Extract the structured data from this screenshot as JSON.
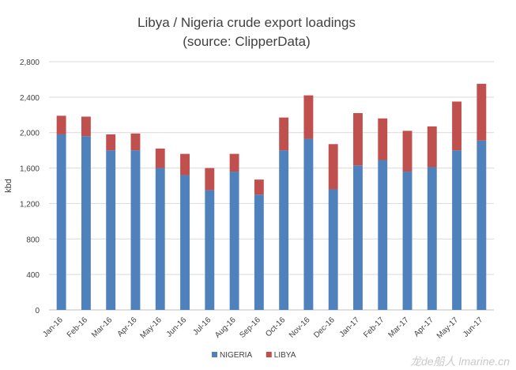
{
  "chart_data": {
    "type": "bar",
    "stacked": true,
    "title": "Libya / Nigeria crude export loadings",
    "subtitle": "(source: ClipperData)",
    "xlabel": "",
    "ylabel": "kbd",
    "ylim": [
      0,
      2800
    ],
    "yticks": [
      "0",
      "400",
      "800",
      "1,200",
      "1,600",
      "2,000",
      "2,400",
      "2,800"
    ],
    "grid": true,
    "legend_position": "bottom",
    "categories": [
      "Jan-16",
      "Feb-16",
      "Mar-16",
      "Apr-16",
      "May-16",
      "Jun-16",
      "Jul-16",
      "Aug-16",
      "Sep-16",
      "Oct-16",
      "Nov-16",
      "Dec-16",
      "Jan-17",
      "Feb-17",
      "Mar-17",
      "Apr-17",
      "May-17",
      "Jun-17"
    ],
    "series": [
      {
        "name": "NIGERIA",
        "color": "#4f81bd",
        "values": [
          1980,
          1960,
          1800,
          1800,
          1600,
          1520,
          1350,
          1560,
          1300,
          1800,
          1930,
          1360,
          1630,
          1690,
          1560,
          1610,
          1800,
          1910
        ]
      },
      {
        "name": "LIBYA",
        "color": "#c0504d",
        "values": [
          210,
          220,
          180,
          190,
          220,
          240,
          250,
          200,
          170,
          370,
          490,
          510,
          590,
          470,
          460,
          460,
          550,
          640
        ]
      }
    ]
  },
  "watermark": "龙de船人 lmarine.cn"
}
